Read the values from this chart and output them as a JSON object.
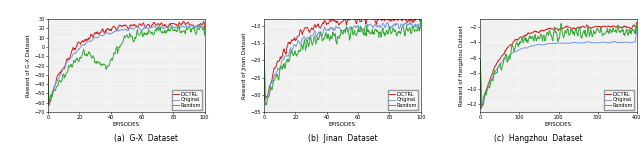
{
  "subplot_titles": [
    "(a)  G-X  Dataset",
    "(b)  Jinan  Dataset",
    "(c)  Hangzhou  Dataset"
  ],
  "ylabels": [
    "Reward of G-X Dataset",
    "Reward of Jinan Dataset",
    "Reward of Hangzhou Dataset"
  ],
  "xlabel": "EPISODES",
  "legend_labels": [
    "DiCTRL",
    "Original",
    "Random"
  ],
  "line_colors": [
    "#cc2222",
    "#7799dd",
    "#33aa33"
  ],
  "bg_color": "#f0f0f0",
  "plots": [
    {
      "xlim": [
        0,
        100
      ],
      "ylim": [
        -70,
        30
      ],
      "yticks": [
        -70,
        -60,
        -50,
        -40,
        -30,
        -20,
        -10,
        0,
        10,
        20,
        30
      ],
      "xticks": [
        0,
        20,
        40,
        60,
        80,
        100
      ]
    },
    {
      "xlim": [
        0,
        100
      ],
      "ylim": [
        -35,
        -8
      ],
      "yticks": [
        -35,
        -30,
        -25,
        -20,
        -15,
        -10
      ],
      "xticks": [
        0,
        20,
        40,
        60,
        80,
        100
      ]
    },
    {
      "xlim": [
        0,
        400
      ],
      "ylim": [
        -13,
        -1
      ],
      "yticks": [
        -12,
        -10,
        -8,
        -6,
        -4,
        -2
      ],
      "xticks": [
        0,
        100,
        200,
        300,
        400
      ]
    }
  ]
}
